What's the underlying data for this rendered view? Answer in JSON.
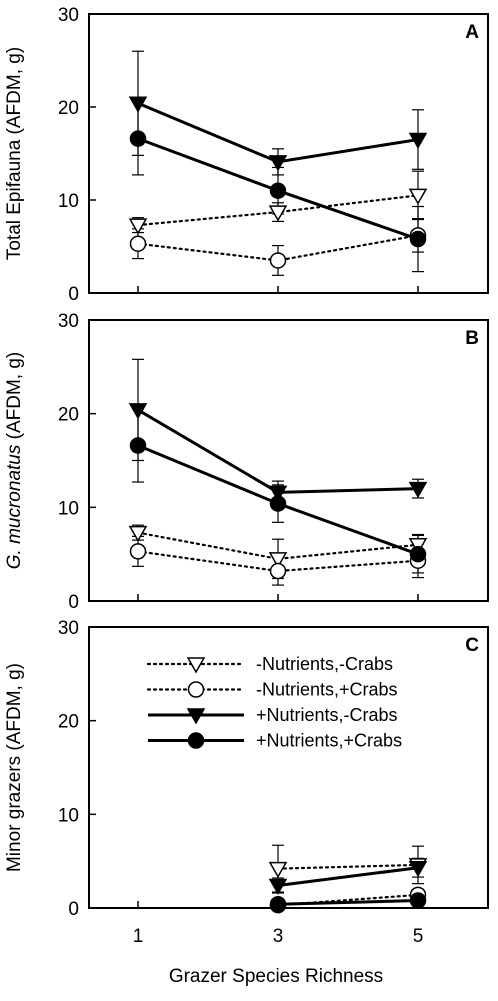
{
  "figure": {
    "xlabel": "Grazer Species Richness",
    "legend": {
      "placement": "top-center of panel C",
      "entries": [
        {
          "label": "-Nutrients,-Crabs",
          "marker": "triangle-down-open",
          "line": "dotted"
        },
        {
          "label": "-Nutrients,+Crabs",
          "marker": "circle-open",
          "line": "dotted"
        },
        {
          "label": "+Nutrients,-Crabs",
          "marker": "triangle-down-filled",
          "line": "solid"
        },
        {
          "label": "+Nutrients,+Crabs",
          "marker": "circle-filled",
          "line": "solid"
        }
      ]
    }
  },
  "chart_data": [
    {
      "type": "line",
      "panel": "A",
      "ylabel": "Total Epifauna (AFDM, g)",
      "ylabel_italic_part": "",
      "ylabel_rest": "Total Epifauna (AFDM, g)",
      "x_ticks": [
        "1",
        "3",
        "5"
      ],
      "y_ticks": [
        "0",
        "10",
        "20",
        "30"
      ],
      "xlim": [
        0.3,
        6.0
      ],
      "ylim": [
        0,
        30
      ],
      "series": [
        {
          "name": "-Nutrients,-Crabs",
          "x": [
            1,
            3,
            5
          ],
          "y": [
            7.3,
            8.7,
            10.5
          ],
          "err": [
            0.8,
            1.0,
            2.6
          ]
        },
        {
          "name": "-Nutrients,+Crabs",
          "x": [
            1,
            3,
            5
          ],
          "y": [
            5.3,
            3.5,
            6.2
          ],
          "err": [
            1.6,
            1.6,
            1.8
          ]
        },
        {
          "name": "+Nutrients,-Crabs",
          "x": [
            1,
            3,
            5
          ],
          "y": [
            20.4,
            14.1,
            16.5
          ],
          "err": [
            5.6,
            1.4,
            3.2
          ]
        },
        {
          "name": "+Nutrients,+Crabs",
          "x": [
            1,
            3,
            5
          ],
          "y": [
            16.6,
            11.0,
            5.8
          ],
          "err": [
            3.9,
            2.5,
            3.5
          ]
        }
      ]
    },
    {
      "type": "line",
      "panel": "B",
      "ylabel": "G. mucronatus (AFDM, g)",
      "ylabel_italic_part": "G. mucronatus",
      "ylabel_rest": " (AFDM, g)",
      "x_ticks": [
        "1",
        "3",
        "5"
      ],
      "y_ticks": [
        "0",
        "10",
        "20",
        "30"
      ],
      "xlim": [
        0.3,
        6.0
      ],
      "ylim": [
        0,
        30
      ],
      "series": [
        {
          "name": "-Nutrients,-Crabs",
          "x": [
            1,
            3,
            5
          ],
          "y": [
            7.3,
            4.5,
            6.0
          ],
          "err": [
            0.8,
            2.1,
            1.1
          ]
        },
        {
          "name": "-Nutrients,+Crabs",
          "x": [
            1,
            3,
            5
          ],
          "y": [
            5.3,
            3.2,
            4.3
          ],
          "err": [
            1.6,
            1.5,
            1.8
          ]
        },
        {
          "name": "+Nutrients,-Crabs",
          "x": [
            1,
            3,
            5
          ],
          "y": [
            20.4,
            11.6,
            12.0
          ],
          "err": [
            5.4,
            1.2,
            1.0
          ]
        },
        {
          "name": "+Nutrients,+Crabs",
          "x": [
            1,
            3,
            5
          ],
          "y": [
            16.6,
            10.4,
            5.0
          ],
          "err": [
            3.9,
            2.0,
            2.0
          ]
        }
      ]
    },
    {
      "type": "line",
      "panel": "C",
      "ylabel": "Minor grazers (AFDM, g)",
      "ylabel_italic_part": "",
      "ylabel_rest": "Minor grazers (AFDM, g)",
      "x_ticks": [
        "1",
        "3",
        "5"
      ],
      "y_ticks": [
        "0",
        "10",
        "20",
        "30"
      ],
      "xlim": [
        0.3,
        6.0
      ],
      "ylim": [
        0,
        30
      ],
      "series": [
        {
          "name": "-Nutrients,-Crabs",
          "x": [
            3,
            5
          ],
          "y": [
            4.2,
            4.6
          ],
          "err": [
            2.5,
            2.0
          ]
        },
        {
          "name": "-Nutrients,+Crabs",
          "x": [
            3,
            5
          ],
          "y": [
            0.3,
            1.4
          ],
          "err": [
            0.4,
            0.6
          ]
        },
        {
          "name": "+Nutrients,-Crabs",
          "x": [
            3,
            5
          ],
          "y": [
            2.4,
            4.3
          ],
          "err": [
            0.8,
            1.0
          ]
        },
        {
          "name": "+Nutrients,+Crabs",
          "x": [
            3,
            5
          ],
          "y": [
            0.4,
            0.8
          ],
          "err": [
            0.3,
            0.4
          ]
        }
      ]
    }
  ]
}
